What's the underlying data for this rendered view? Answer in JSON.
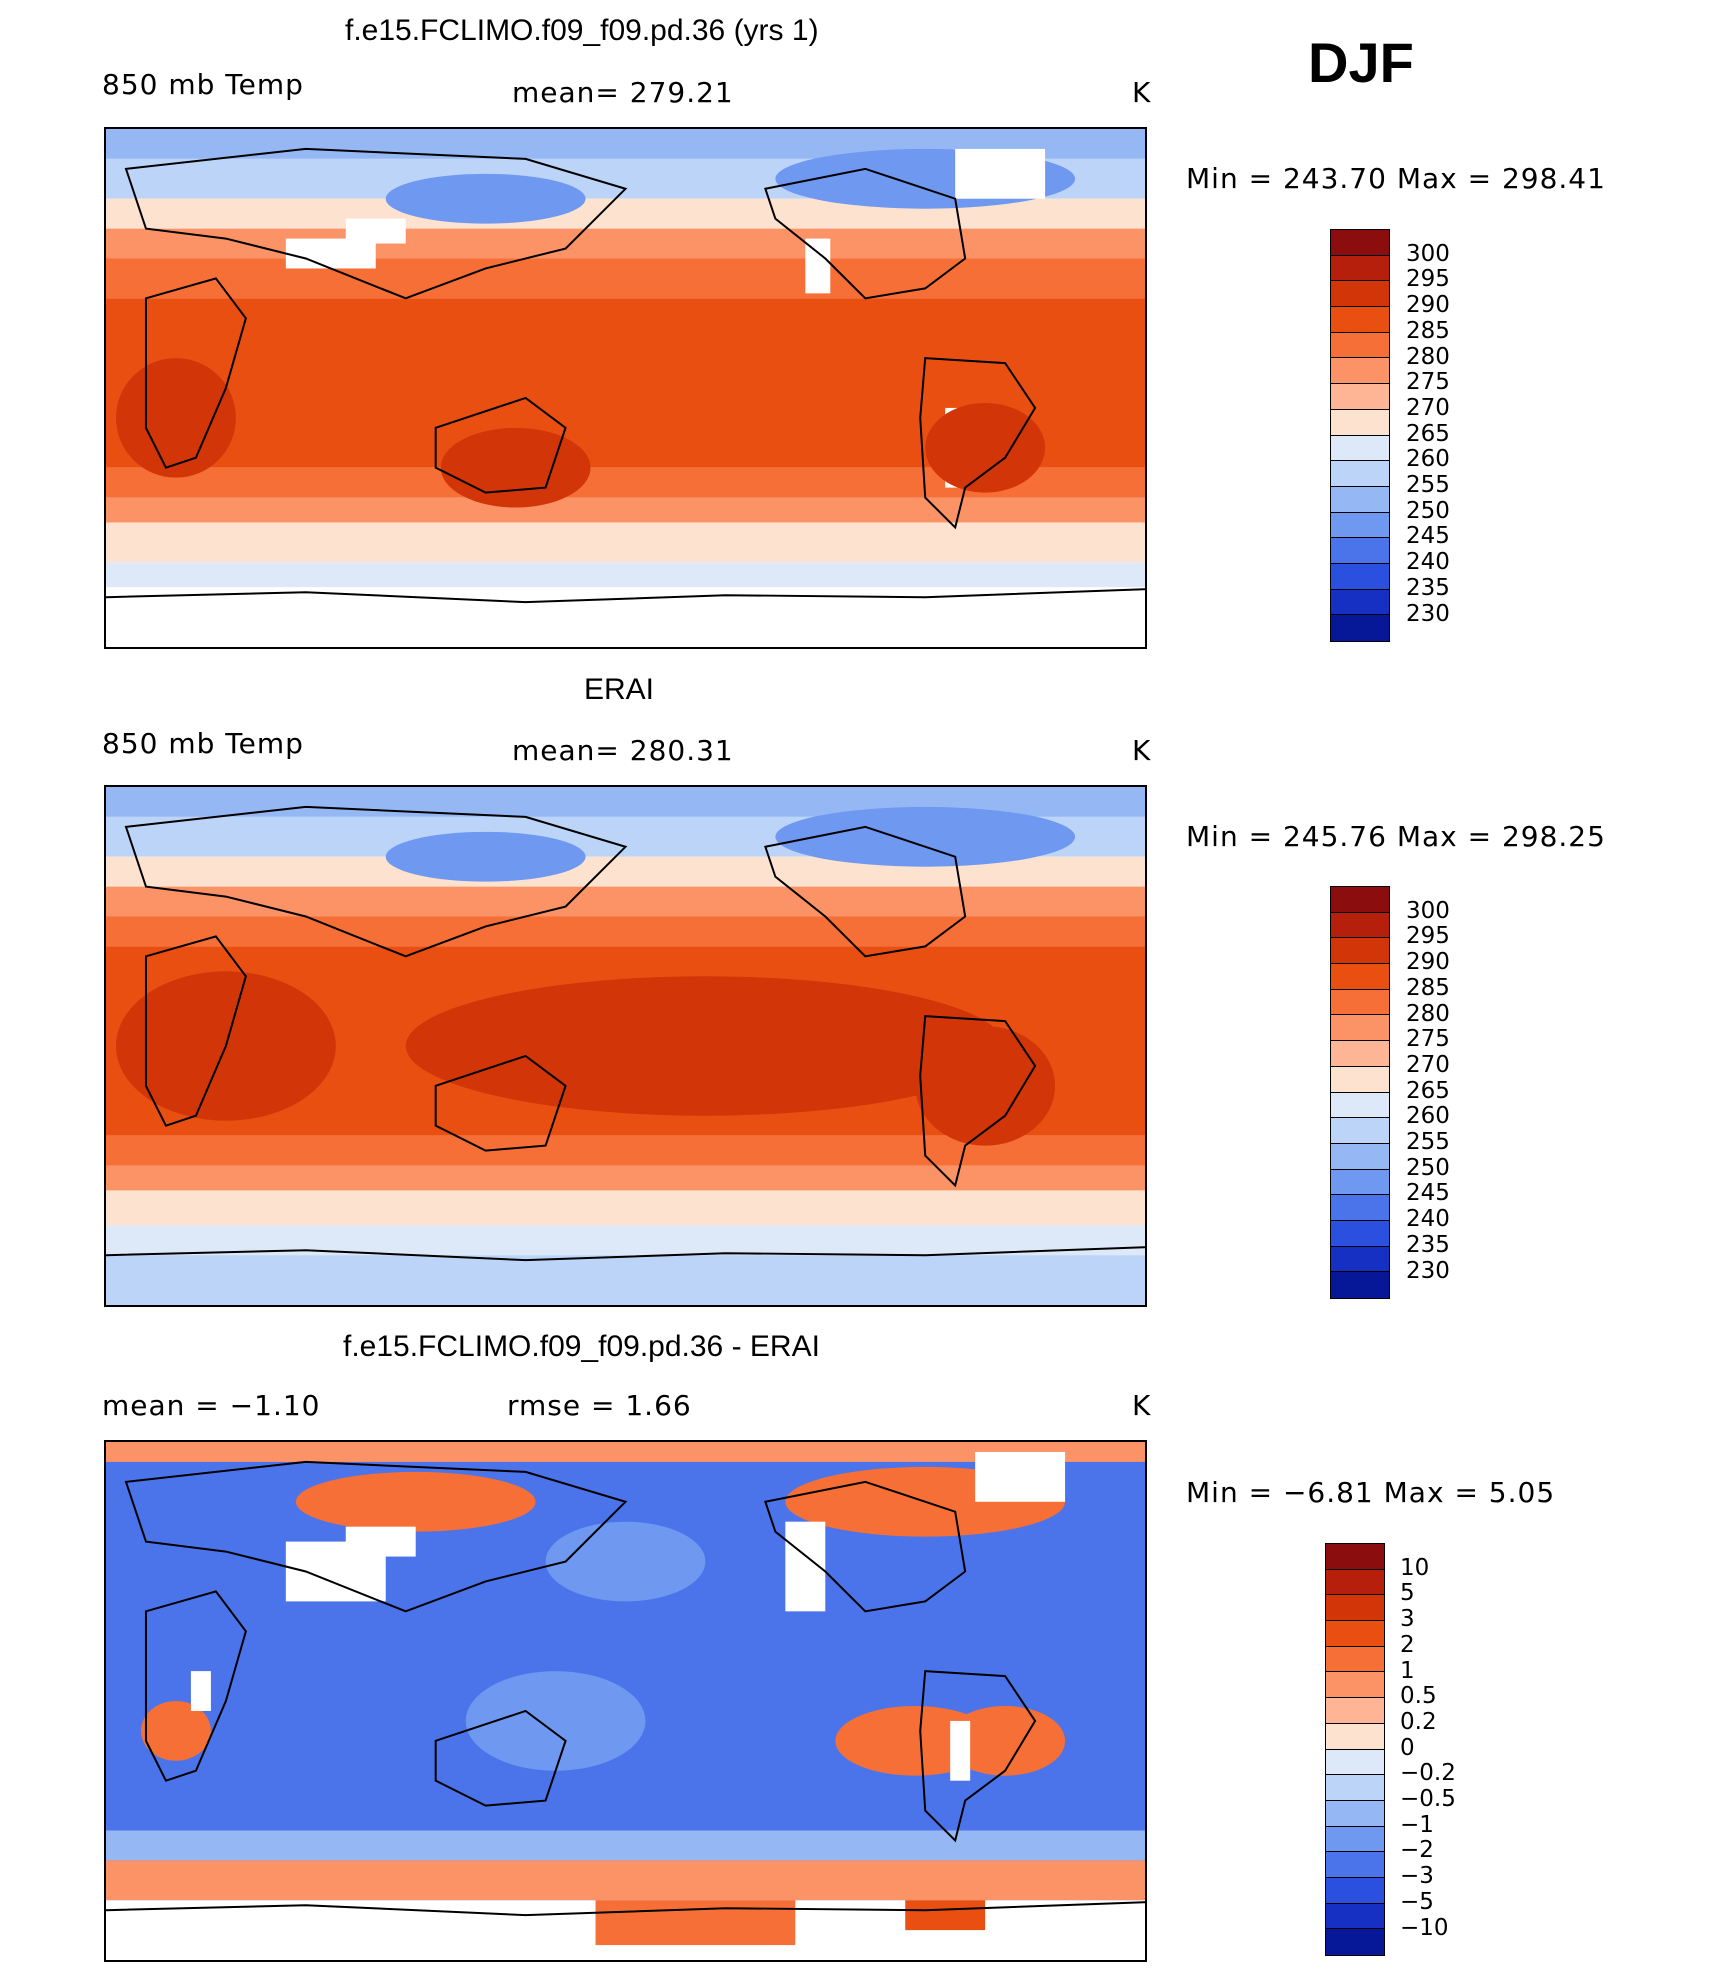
{
  "season": "DJF",
  "panels": [
    {
      "title": "f.e15.FCLIMO.f09_f09.pd.36 (yrs 1)",
      "left_label": "850 mb Temp",
      "center_label": "mean= 279.21",
      "units": "K",
      "minmax": "Min  =  243.70  Max  =  298.41"
    },
    {
      "title": "ERAI",
      "left_label": "850 mb Temp",
      "center_label": "mean= 280.31",
      "units": "K",
      "minmax": "Min  =  245.76  Max  =  298.25"
    },
    {
      "title": "f.e15.FCLIMO.f09_f09.pd.36 - ERAI",
      "left_label": "mean =   −1.10",
      "center_label": "rmse =    1.66",
      "units": "K",
      "minmax": "Min  =   −6.81  Max  =     5.05"
    }
  ],
  "colorbars": {
    "temp": {
      "labels": [
        "300",
        "295",
        "290",
        "285",
        "280",
        "275",
        "270",
        "265",
        "260",
        "255",
        "250",
        "245",
        "240",
        "235",
        "230"
      ],
      "colors": [
        "#8b0d0d",
        "#b51f0c",
        "#d23508",
        "#ea4f12",
        "#f66f36",
        "#fb9367",
        "#fdb596",
        "#fde3cf",
        "#dde9f9",
        "#bcd4f7",
        "#95b8f5",
        "#6f98f1",
        "#4b74ea",
        "#2b4fde",
        "#1530c2",
        "#061797"
      ]
    },
    "diff": {
      "labels": [
        "10",
        "5",
        "3",
        "2",
        "1",
        "0.5",
        "0.2",
        "0",
        "−0.2",
        "−0.5",
        "−1",
        "−2",
        "−3",
        "−5",
        "−10"
      ],
      "colors": [
        "#8b0d0d",
        "#b51f0c",
        "#d23508",
        "#ea4f12",
        "#f66f36",
        "#fb9367",
        "#fdb596",
        "#fde3cf",
        "#dde9f9",
        "#bcd4f7",
        "#95b8f5",
        "#6f98f1",
        "#4b74ea",
        "#2b4fde",
        "#1530c2",
        "#061797"
      ]
    }
  }
}
